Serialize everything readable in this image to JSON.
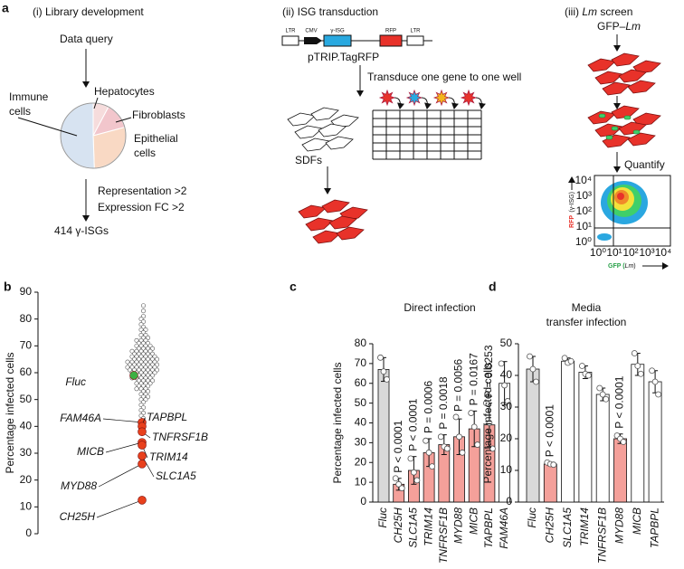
{
  "panel_labels": [
    "a",
    "b",
    "c",
    "d"
  ],
  "schematic": {
    "i_title": "(i) Library development",
    "data_query": "Data query",
    "pie_labels": [
      "Immune",
      "cells",
      "Hepatocytes",
      "Fibroblasts",
      "Epithelial",
      "cells"
    ],
    "filters": [
      "Representation >2",
      "Expression FC >2"
    ],
    "result": "414 γ-ISGs",
    "ii_title": "(ii) ISG transduction",
    "vector_parts": [
      "LTR",
      "CMV",
      "γ-ISG",
      "RFP",
      "LTR"
    ],
    "vector_name": "pTRIP.TagRFP",
    "transduce": "Transduce one gene to one well",
    "sdfs": "SDFs",
    "iii_title": [
      "(iii)",
      "Lm",
      "screen"
    ],
    "gfp_lm": [
      "GFP–",
      "Lm"
    ],
    "quantify": "Quantify",
    "flow_ticks": [
      "10⁰",
      "10¹",
      "10²",
      "10³",
      "10⁴"
    ],
    "flow_ylabel": [
      "RFP",
      "(γ-ISG)"
    ],
    "flow_xlabel": [
      "GFP (",
      "Lm",
      ")"
    ]
  },
  "chart_data": [
    {
      "type": "strip",
      "ylabel": "Percentage infected cells",
      "ylim": [
        0,
        90
      ],
      "yticks": [
        0,
        10,
        20,
        30,
        40,
        50,
        60,
        70,
        80,
        90
      ],
      "color": "#ffffff",
      "values": [
        85,
        83,
        81,
        80,
        79,
        78,
        77,
        76,
        76,
        75,
        74,
        74,
        73,
        73,
        72,
        72,
        72,
        71,
        71,
        71,
        70,
        70,
        70,
        70,
        69,
        69,
        69,
        69,
        68,
        68,
        68,
        68,
        68,
        67,
        67,
        67,
        67,
        67,
        66,
        66,
        66,
        66,
        66,
        66,
        65,
        65,
        65,
        65,
        65,
        65,
        64,
        64,
        64,
        64,
        64,
        64,
        64,
        63,
        63,
        63,
        63,
        63,
        63,
        63,
        62,
        62,
        62,
        62,
        62,
        62,
        62,
        61,
        61,
        61,
        61,
        61,
        61,
        61,
        60,
        60,
        60,
        60,
        60,
        60,
        59,
        59,
        59,
        59,
        59,
        58,
        58,
        58,
        58,
        58,
        57,
        57,
        57,
        57,
        56,
        56,
        56,
        56,
        55,
        55,
        55,
        54,
        54,
        54,
        53,
        53,
        52,
        52,
        51,
        51,
        50,
        50,
        49,
        48,
        47,
        46,
        45,
        44,
        43
      ],
      "highlights": [
        {
          "name": "Fluc",
          "value": 59,
          "color": "#3cb043"
        },
        {
          "name": "FAM46A",
          "value": 41.5,
          "color": "#e8401c"
        },
        {
          "name": "TAPBPL",
          "value": 40,
          "color": "#e8401c"
        },
        {
          "name": "TNFRSF1B",
          "value": 38,
          "color": "#e8401c"
        },
        {
          "name": "MICB",
          "value": 34,
          "color": "#e8401c"
        },
        {
          "name": "TRIM14",
          "value": 33,
          "color": "#e8401c"
        },
        {
          "name": "SLC1A5",
          "value": 29,
          "color": "#e8401c"
        },
        {
          "name": "MYD88",
          "value": 26,
          "color": "#e8401c"
        },
        {
          "name": "CH25H",
          "value": 12.5,
          "color": "#e8401c"
        }
      ]
    },
    {
      "type": "bar",
      "title": "Direct infection",
      "ylabel": "Percentage infected cells",
      "ylim": [
        0,
        80
      ],
      "yticks": [
        0,
        10,
        20,
        30,
        40,
        50,
        60,
        70,
        80
      ],
      "categories": [
        "Fluc",
        "CH25H",
        "SLC1A5",
        "TRIM14",
        "TNFRSF1B",
        "MYD88",
        "MICB",
        "TAPBPL",
        "FAM46A"
      ],
      "values": [
        67,
        9,
        16,
        25,
        29,
        33,
        37,
        39,
        60
      ],
      "errors": [
        6,
        3,
        7,
        7,
        5,
        9,
        9,
        11,
        11
      ],
      "points": [
        [
          73,
          66,
          62
        ],
        [
          12,
          9,
          7
        ],
        [
          22,
          15,
          11
        ],
        [
          31,
          25,
          18
        ],
        [
          33,
          28,
          27
        ],
        [
          43,
          33,
          25
        ],
        [
          45,
          38,
          29
        ],
        [
          50,
          40,
          27
        ],
        [
          70,
          59,
          51
        ]
      ],
      "colors": [
        "#d9d9d9",
        "#f4a09a",
        "#f4a09a",
        "#f4a09a",
        "#f4a09a",
        "#f4a09a",
        "#f4a09a",
        "#f4a09a",
        "#ffffff"
      ],
      "p_labels": [
        null,
        "P < 0.0001",
        "P < 0.0001",
        "P = 0.0006",
        "P = 0.0018",
        "P = 0.0056",
        "P = 0.0167",
        "P = 0.0253",
        null
      ]
    },
    {
      "type": "bar",
      "title": [
        "Media",
        "transfer infection"
      ],
      "ylabel": "Percentage infected cells",
      "ylim": [
        0,
        50
      ],
      "yticks": [
        0,
        10,
        20,
        30,
        40,
        50
      ],
      "categories": [
        "Fluc",
        "CH25H",
        "SLC1A5",
        "TRIM14",
        "TNFRSF1B",
        "MYD88",
        "MICB",
        "TAPBPL"
      ],
      "values": [
        42,
        12,
        44.5,
        41,
        34,
        20,
        43.5,
        38
      ],
      "errors": [
        4,
        0.5,
        1,
        2,
        2,
        1.5,
        3.5,
        3.5
      ],
      "points": [
        [
          46,
          42,
          38
        ],
        [
          12.5,
          12,
          11.8
        ],
        [
          45.5,
          44,
          44.5
        ],
        [
          43,
          40.5,
          40
        ],
        [
          36,
          34,
          32.5
        ],
        [
          21,
          20,
          19
        ],
        [
          47,
          43,
          40.5
        ],
        [
          41.5,
          38,
          34
        ]
      ],
      "colors": [
        "#d9d9d9",
        "#f4a09a",
        "#ffffff",
        "#ffffff",
        "#ffffff",
        "#f4a09a",
        "#ffffff",
        "#ffffff"
      ],
      "p_labels": [
        null,
        "P < 0.0001",
        null,
        null,
        null,
        "P < 0.0001",
        null,
        null
      ]
    }
  ]
}
